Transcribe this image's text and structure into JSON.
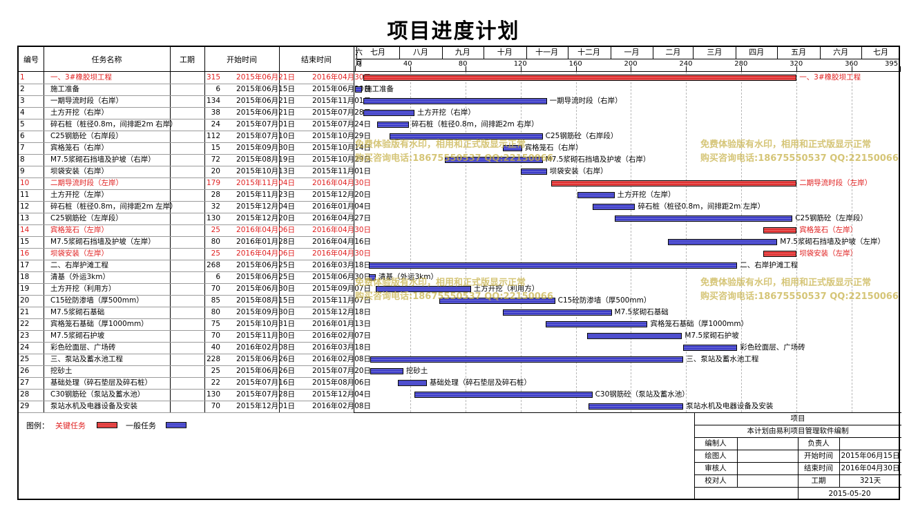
{
  "title": "项目进度计划",
  "headers": {
    "no": "编号",
    "name": "任务名称",
    "days": "工期",
    "start": "开始时间",
    "end": "结束时间"
  },
  "chart_data": {
    "type": "gantt",
    "x_axis": {
      "ticks": [
        0,
        40,
        80,
        120,
        160,
        200,
        240,
        280,
        320,
        360,
        395
      ],
      "range": [
        0,
        395
      ],
      "months": [
        "六月",
        "七月",
        "八月",
        "九月",
        "十月",
        "十一月",
        "十二月",
        "一月",
        "二月",
        "三月",
        "四月",
        "五月",
        "六月",
        "七月"
      ]
    },
    "tasks": [
      {
        "no": "1",
        "name": "一、3#橡胶坝工程",
        "days": "315",
        "start": "2015年06月21日",
        "end": "2016年04月30日",
        "critical": true,
        "s": 6,
        "e": 320,
        "bar_label": "一、3#橡胶坝工程"
      },
      {
        "no": "2",
        "name": "施工准备",
        "days": "6",
        "start": "2015年06月15日",
        "end": "2015年06月20日",
        "critical": false,
        "s": 0,
        "e": 5,
        "bar_label": "施工准备"
      },
      {
        "no": "3",
        "name": "一期导流时段（右岸）",
        "days": "134",
        "start": "2015年06月21日",
        "end": "2015年11月01日",
        "critical": false,
        "s": 6,
        "e": 139,
        "bar_label": "一期导流时段（右岸）"
      },
      {
        "no": "4",
        "name": "土方开挖（右岸）",
        "days": "38",
        "start": "2015年06月21日",
        "end": "2015年07月28日",
        "critical": false,
        "s": 6,
        "e": 43,
        "bar_label": "土方开挖（右岸）"
      },
      {
        "no": "5",
        "name": "碎石桩（桩径0.8m，间排距2m 右岸）",
        "days": "24",
        "start": "2015年07月01日",
        "end": "2015年07月24日",
        "critical": false,
        "s": 16,
        "e": 39,
        "bar_label": "碎石桩（桩径0.8m，间排距2m  右岸）"
      },
      {
        "no": "6",
        "name": "C25钢筋砼（右岸段）",
        "days": "112",
        "start": "2015年07月10日",
        "end": "2015年10月29日",
        "critical": false,
        "s": 25,
        "e": 136,
        "bar_label": "C25钢筋砼（右岸段）"
      },
      {
        "no": "7",
        "name": "宾格笼石（右岸）",
        "days": "15",
        "start": "2015年09月30日",
        "end": "2015年10月14日",
        "critical": false,
        "s": 107,
        "e": 121,
        "bar_label": "宾格笼石（右岸）"
      },
      {
        "no": "8",
        "name": "M7.5浆砌石挡墙及护坡（右岸）",
        "days": "72",
        "start": "2015年08月19日",
        "end": "2015年10月29日",
        "critical": false,
        "s": 65,
        "e": 136,
        "bar_label": "M7.5浆砌石挡墙及护坡（右岸）"
      },
      {
        "no": "9",
        "name": "坝袋安装（右岸）",
        "days": "20",
        "start": "2015年10月13日",
        "end": "2015年11月01日",
        "critical": false,
        "s": 120,
        "e": 139,
        "bar_label": "坝袋安装（右岸）"
      },
      {
        "no": "10",
        "name": "二期导流时段（左岸）",
        "days": "179",
        "start": "2015年11月04日",
        "end": "2016年04月30日",
        "critical": true,
        "s": 142,
        "e": 320,
        "bar_label": "二期导流时段（左岸）"
      },
      {
        "no": "11",
        "name": "土方开挖（左岸）",
        "days": "28",
        "start": "2015年11月23日",
        "end": "2015年12月20日",
        "critical": false,
        "s": 161,
        "e": 188,
        "bar_label": "土方开挖（左岸）"
      },
      {
        "no": "12",
        "name": "碎石桩（桩径0.8m，间排距2m 左岸）",
        "days": "32",
        "start": "2015年12月04日",
        "end": "2016年01月04日",
        "critical": false,
        "s": 172,
        "e": 203,
        "bar_label": "碎石桩（桩径0.8m，间排距2m  左岸）"
      },
      {
        "no": "13",
        "name": "C25钢筋砼（左岸段）",
        "days": "130",
        "start": "2015年12月20日",
        "end": "2016年04月27日",
        "critical": false,
        "s": 188,
        "e": 317,
        "bar_label": "C25钢筋砼（左岸段）"
      },
      {
        "no": "14",
        "name": "宾格笼石（左岸）",
        "days": "25",
        "start": "2016年04月06日",
        "end": "2016年04月30日",
        "critical": true,
        "s": 296,
        "e": 320,
        "bar_label": "宾格笼石（左岸）"
      },
      {
        "no": "15",
        "name": "M7.5浆砌石挡墙及护坡（左岸）",
        "days": "80",
        "start": "2016年01月28日",
        "end": "2016年04月16日",
        "critical": false,
        "s": 227,
        "e": 306,
        "bar_label": "M7.5浆砌石挡墙及护坡（左岸）"
      },
      {
        "no": "16",
        "name": "坝袋安装（左岸）",
        "days": "25",
        "start": "2016年04月06日",
        "end": "2016年04月30日",
        "critical": true,
        "s": 296,
        "e": 320,
        "bar_label": "坝袋安装（左岸）"
      },
      {
        "no": "17",
        "name": "二、右岸护滩工程",
        "days": "268",
        "start": "2015年06月25日",
        "end": "2016年03月18日",
        "critical": false,
        "s": 10,
        "e": 277,
        "bar_label": "二、右岸护滩工程"
      },
      {
        "no": "18",
        "name": "清基（外运3km）",
        "days": "6",
        "start": "2015年06月25日",
        "end": "2015年06月30日",
        "critical": false,
        "s": 10,
        "e": 15,
        "bar_label": "清基（外运3km）"
      },
      {
        "no": "19",
        "name": "土方开挖（利用方）",
        "days": "70",
        "start": "2015年06月30日",
        "end": "2015年09月07日",
        "critical": false,
        "s": 15,
        "e": 84,
        "bar_label": "土方开挖（利用方）"
      },
      {
        "no": "20",
        "name": "C15砼防渗墙（厚500mm）",
        "days": "85",
        "start": "2015年08月15日",
        "end": "2015年11月07日",
        "critical": false,
        "s": 61,
        "e": 145,
        "bar_label": "C15砼防渗墙（厚500mm）"
      },
      {
        "no": "21",
        "name": "M7.5浆砌石基础",
        "days": "80",
        "start": "2015年09月30日",
        "end": "2015年12月18日",
        "critical": false,
        "s": 107,
        "e": 186,
        "bar_label": "M7.5浆砌石基础"
      },
      {
        "no": "22",
        "name": "宾格笼石基础（厚1000mm）",
        "days": "75",
        "start": "2015年10月31日",
        "end": "2016年01月13日",
        "critical": false,
        "s": 138,
        "e": 212,
        "bar_label": "宾格笼石基础（厚1000mm）"
      },
      {
        "no": "23",
        "name": "M7.5浆砌石护坡",
        "days": "70",
        "start": "2015年11月30日",
        "end": "2016年02月07日",
        "critical": false,
        "s": 168,
        "e": 237,
        "bar_label": "M7.5浆砌石护坡"
      },
      {
        "no": "24",
        "name": "彩色砼面层、广场砖",
        "days": "40",
        "start": "2016年02月08日",
        "end": "2016年03月18日",
        "critical": false,
        "s": 238,
        "e": 277,
        "bar_label": "彩色砼面层、广场砖"
      },
      {
        "no": "25",
        "name": "三、泵站及蓄水池工程",
        "days": "228",
        "start": "2015年06月26日",
        "end": "2016年02月08日",
        "critical": false,
        "s": 11,
        "e": 238,
        "bar_label": "三、泵站及蓄水池工程"
      },
      {
        "no": "26",
        "name": "挖砂土",
        "days": "25",
        "start": "2015年06月26日",
        "end": "2015年07月20日",
        "critical": false,
        "s": 11,
        "e": 35,
        "bar_label": "挖砂土"
      },
      {
        "no": "27",
        "name": "基础处理（碎石垫层及碎石桩）",
        "days": "22",
        "start": "2015年07月16日",
        "end": "2015年08月06日",
        "critical": false,
        "s": 31,
        "e": 52,
        "bar_label": "基础处理（碎石垫层及碎石桩）"
      },
      {
        "no": "28",
        "name": "C30钢筋砼（泵站及蓄水池）",
        "days": "130",
        "start": "2015年07月28日",
        "end": "2015年12月04日",
        "critical": false,
        "s": 43,
        "e": 172,
        "bar_label": "C30钢筋砼（泵站及蓄水池）"
      },
      {
        "no": "29",
        "name": "泵站水机及电器设备及安装",
        "days": "70",
        "start": "2015年12月01日",
        "end": "2016年02月08日",
        "critical": false,
        "s": 169,
        "e": 238,
        "bar_label": "泵站水机及电器设备及安装"
      }
    ]
  },
  "legend": {
    "label": "图例：",
    "critical": "关键任务",
    "normal": "一般任务"
  },
  "colors": {
    "critical": "#e03030",
    "normal": "#3c3cc8",
    "critical_text": "#e02020"
  },
  "watermark": {
    "line1": "免费体验版有水印，相用和正式版显示正常",
    "line2": "购买咨询电话:18675550537 QQ:22150066"
  },
  "title_block": {
    "header": "项目",
    "compiled_by": "本计划由易利项目管理软件编制",
    "preparer": "编制人",
    "drawer": "绘图人",
    "reviewer": "审核人",
    "checker": "校对人",
    "owner": "负责人",
    "start_label": "开始时间",
    "start_value": "2015年06月15日",
    "end_label": "结束时间",
    "end_value": "2016年04月30日",
    "duration_label": "工期",
    "duration_value": "321天",
    "date": "2015-05-20"
  }
}
